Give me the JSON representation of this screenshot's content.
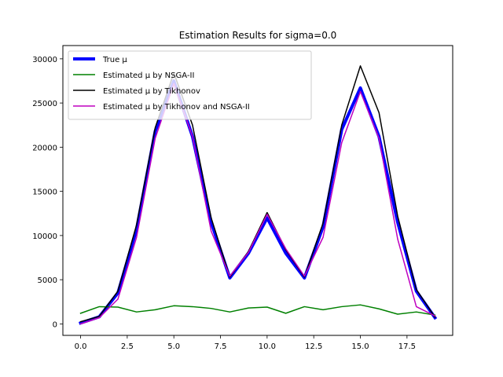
{
  "chart_data": {
    "type": "line",
    "title": "Estimation Results for sigma=0.0",
    "xlabel": "",
    "ylabel": "",
    "xlim": [
      -0.95,
      19.95
    ],
    "ylim": [
      -1300,
      31500
    ],
    "x": [
      0,
      1,
      2,
      3,
      4,
      5,
      6,
      7,
      8,
      9,
      10,
      11,
      12,
      13,
      14,
      15,
      16,
      17,
      18,
      19
    ],
    "x_ticks": [
      0,
      2.5,
      5,
      7.5,
      10,
      12.5,
      15,
      17.5
    ],
    "x_tick_labels": [
      "0.0",
      "2.5",
      "5.0",
      "7.5",
      "10.0",
      "12.5",
      "15.0",
      "17.5"
    ],
    "y_ticks": [
      0,
      5000,
      10000,
      15000,
      20000,
      25000,
      30000
    ],
    "y_tick_labels": [
      "0",
      "5000",
      "10000",
      "15000",
      "20000",
      "25000",
      "30000"
    ],
    "legend_position": "top-left",
    "series": [
      {
        "name": "True μ",
        "color": "#0000ff",
        "values": [
          100,
          800,
          3500,
          10700,
          21800,
          27500,
          21200,
          11500,
          5200,
          8000,
          12000,
          8000,
          5200,
          11000,
          22000,
          26700,
          21200,
          11500,
          3700,
          700
        ]
      },
      {
        "name": "Estimated μ by NSGA-II",
        "color": "#008000",
        "values": [
          1200,
          1950,
          1900,
          1350,
          1600,
          2050,
          1950,
          1750,
          1350,
          1800,
          1900,
          1200,
          1950,
          1600,
          1950,
          2150,
          1700,
          1100,
          1350,
          1000
        ]
      },
      {
        "name": "Estimated μ by Tikhonov",
        "color": "#000000",
        "values": [
          250,
          850,
          3700,
          11200,
          22200,
          28400,
          22500,
          12000,
          5300,
          8200,
          12600,
          8400,
          5300,
          11400,
          22500,
          29200,
          23900,
          12200,
          3900,
          750
        ]
      },
      {
        "name": "Estimated μ by Tikhonov and NSGA-II",
        "color": "#bf00bf",
        "values": [
          0,
          700,
          2800,
          9800,
          21000,
          27200,
          21200,
          10500,
          5400,
          8100,
          12400,
          8500,
          5400,
          9800,
          20500,
          26300,
          21000,
          9600,
          1950,
          900
        ]
      }
    ]
  }
}
